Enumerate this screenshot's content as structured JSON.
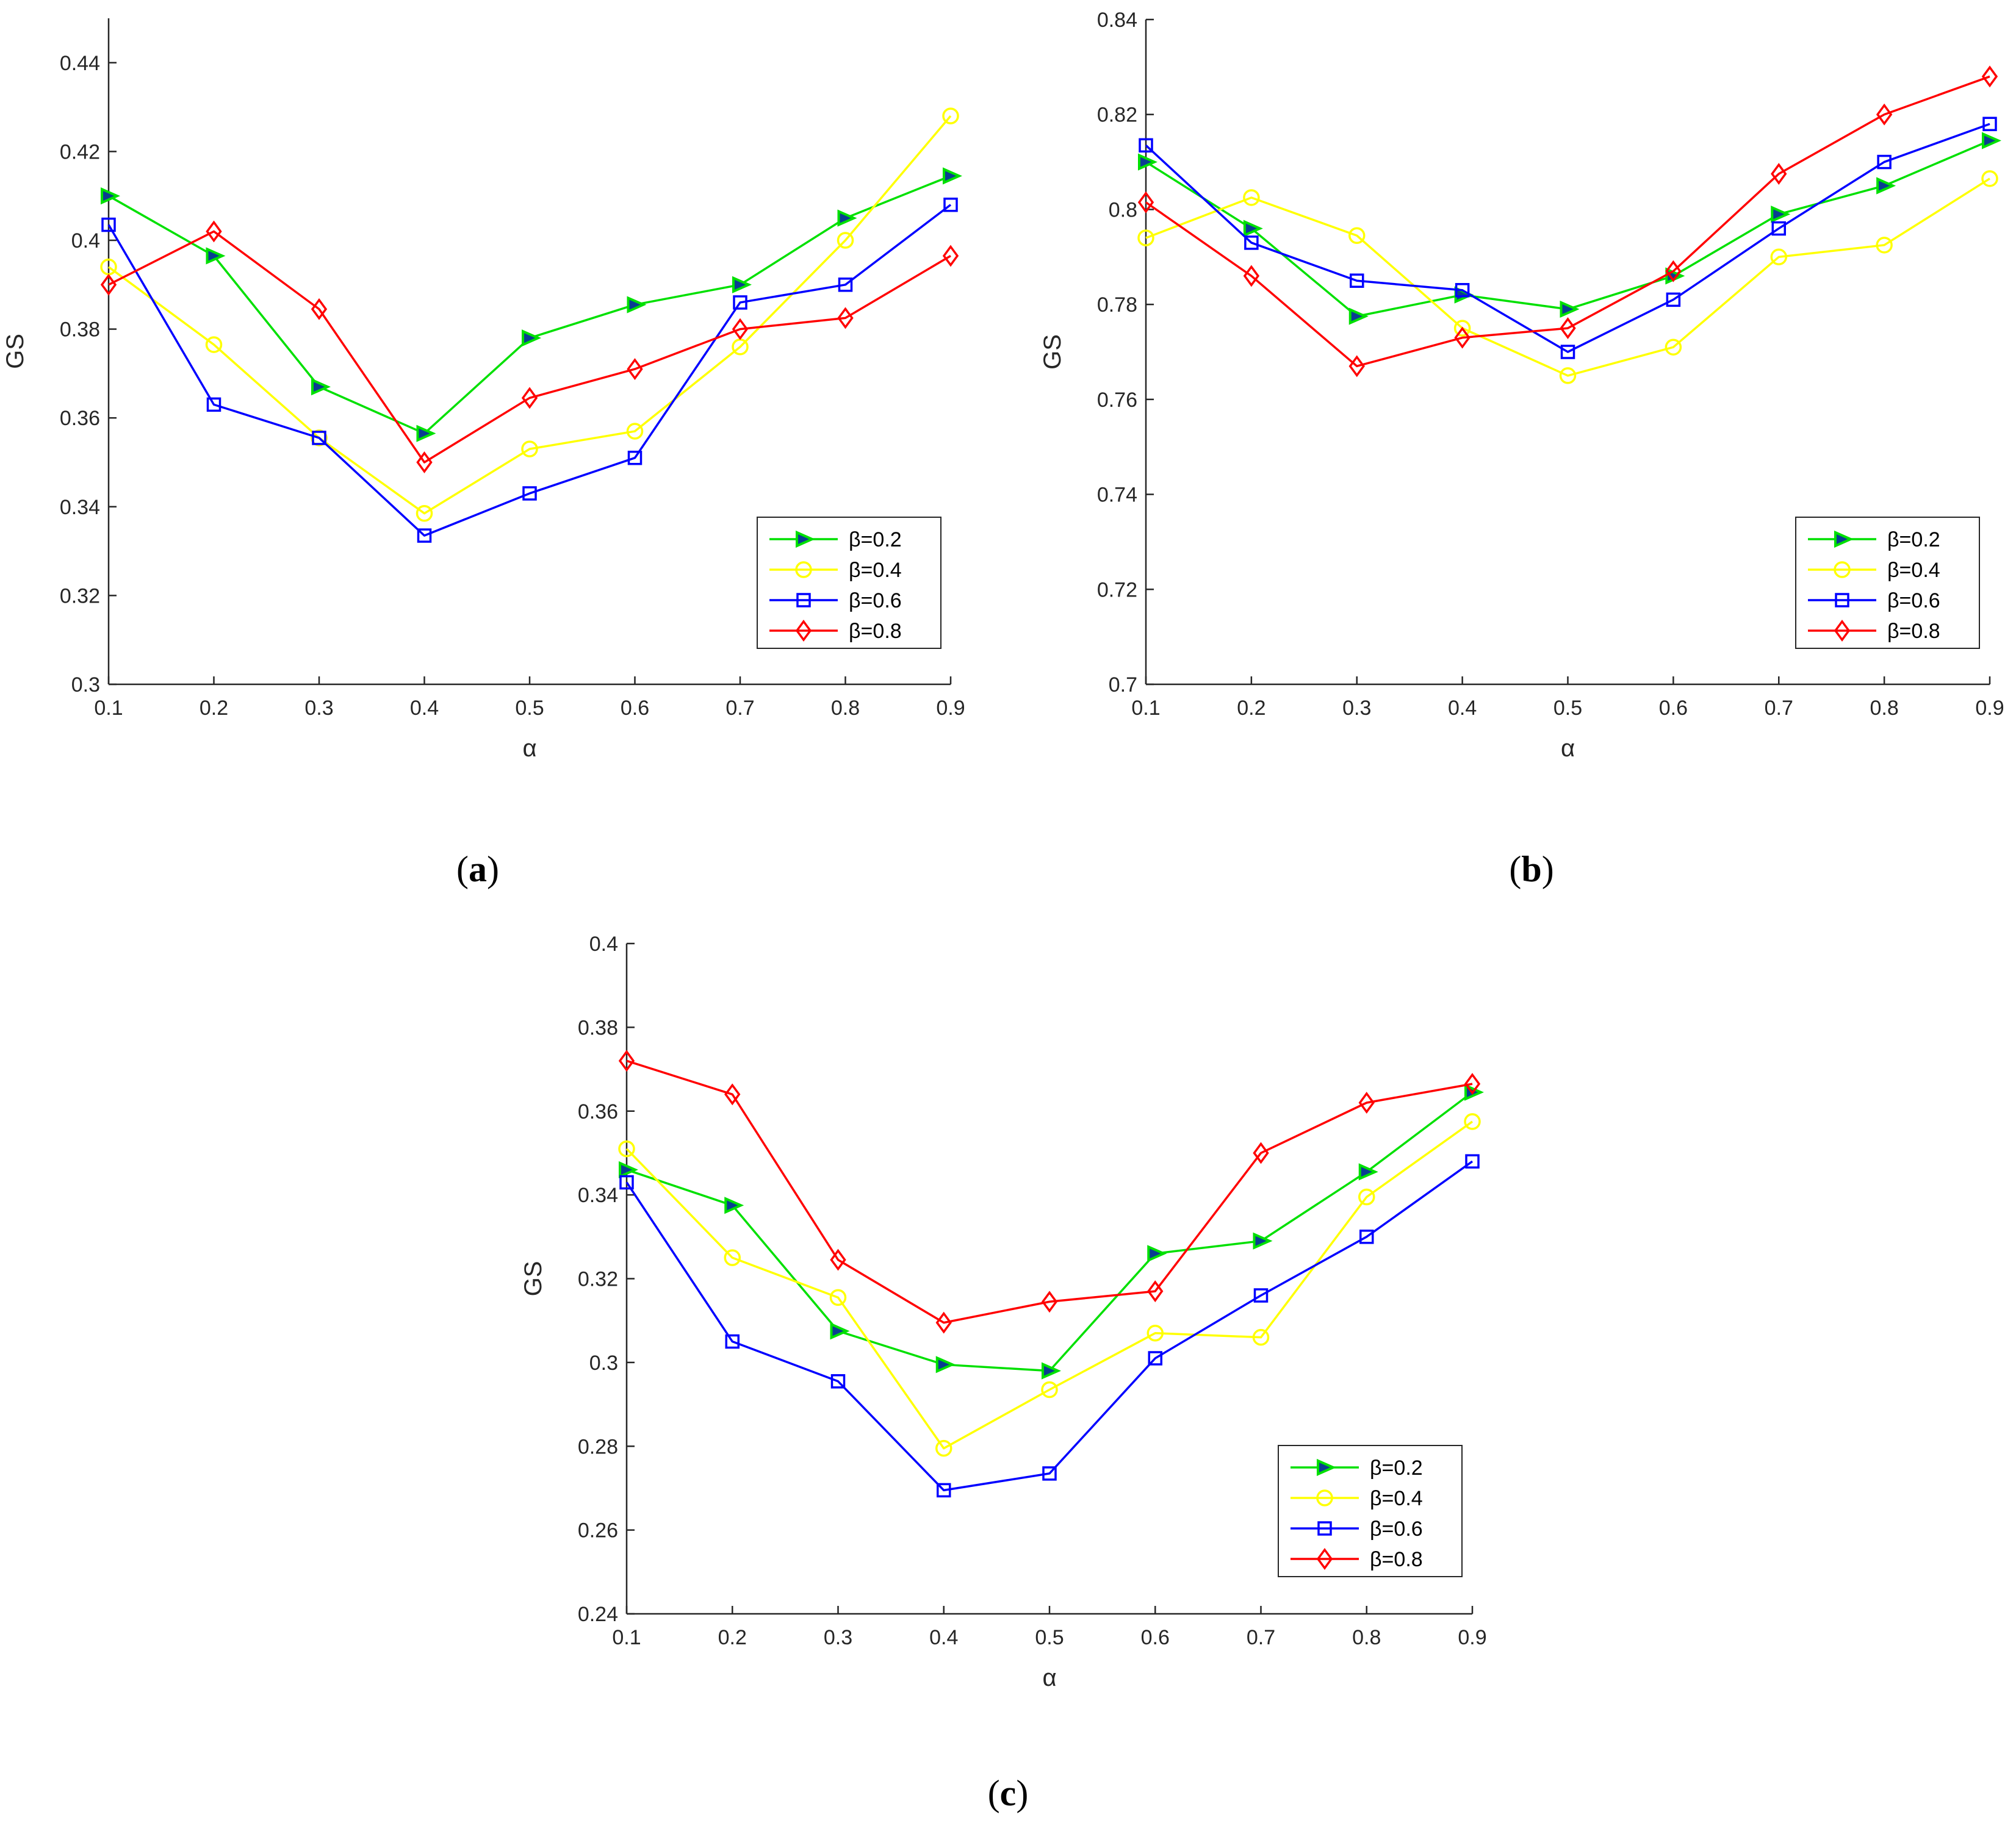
{
  "chart_data": [
    {
      "type": "line",
      "caption_letter": "a",
      "xlabel": "α",
      "ylabel": "GS",
      "x": [
        0.1,
        0.2,
        0.3,
        0.4,
        0.5,
        0.6,
        0.7,
        0.8,
        0.9
      ],
      "xtick_labels": [
        "0.1",
        "0.2",
        "0.3",
        "0.4",
        "0.5",
        "0.6",
        "0.7",
        "0.8",
        "0.9"
      ],
      "ylim": [
        0.3,
        0.45
      ],
      "yticks": [
        0.3,
        0.32,
        0.34,
        0.36,
        0.38,
        0.4,
        0.42,
        0.44
      ],
      "ytick_labels": [
        "0.3",
        "0.32",
        "0.34",
        "0.36",
        "0.38",
        "0.4",
        "0.42",
        "0.44"
      ],
      "legend_position": "bottom-right",
      "series": [
        {
          "name": "β=0.2",
          "color": "#00e000",
          "marker": "triangle-right",
          "values": [
            0.41,
            0.3965,
            0.367,
            0.3565,
            0.378,
            0.3855,
            0.39,
            0.405,
            0.4145
          ]
        },
        {
          "name": "β=0.4",
          "color": "#ffff00",
          "marker": "circle",
          "values": [
            0.394,
            0.3765,
            0.3555,
            0.3385,
            0.353,
            0.357,
            0.376,
            0.4,
            0.428
          ]
        },
        {
          "name": "β=0.6",
          "color": "#0000ff",
          "marker": "square",
          "values": [
            0.4035,
            0.363,
            0.3555,
            0.3335,
            0.343,
            0.351,
            0.386,
            0.39,
            0.408
          ]
        },
        {
          "name": "β=0.8",
          "color": "#ff0000",
          "marker": "diamond",
          "values": [
            0.39,
            0.402,
            0.3845,
            0.35,
            0.3645,
            0.371,
            0.38,
            0.3825,
            0.3965
          ]
        }
      ]
    },
    {
      "type": "line",
      "caption_letter": "b",
      "xlabel": "α",
      "ylabel": "GS",
      "x": [
        0.1,
        0.2,
        0.3,
        0.4,
        0.5,
        0.6,
        0.7,
        0.8,
        0.9
      ],
      "xtick_labels": [
        "0.1",
        "0.2",
        "0.3",
        "0.4",
        "0.5",
        "0.6",
        "0.7",
        "0.8",
        "0.9"
      ],
      "ylim": [
        0.7,
        0.84
      ],
      "yticks": [
        0.7,
        0.72,
        0.74,
        0.76,
        0.78,
        0.8,
        0.82,
        0.84
      ],
      "ytick_labels": [
        "0.7",
        "0.72",
        "0.74",
        "0.76",
        "0.78",
        "0.8",
        "0.82",
        "0.84"
      ],
      "legend_position": "bottom-right",
      "series": [
        {
          "name": "β=0.2",
          "color": "#00e000",
          "marker": "triangle-right",
          "values": [
            0.81,
            0.796,
            0.7775,
            0.782,
            0.779,
            0.786,
            0.799,
            0.805,
            0.8145
          ]
        },
        {
          "name": "β=0.4",
          "color": "#ffff00",
          "marker": "circle",
          "values": [
            0.794,
            0.8025,
            0.7945,
            0.775,
            0.765,
            0.771,
            0.79,
            0.7925,
            0.8065
          ]
        },
        {
          "name": "β=0.6",
          "color": "#0000ff",
          "marker": "square",
          "values": [
            0.8135,
            0.793,
            0.785,
            0.783,
            0.77,
            0.781,
            0.796,
            0.81,
            0.818
          ]
        },
        {
          "name": "β=0.8",
          "color": "#ff0000",
          "marker": "diamond",
          "values": [
            0.8015,
            0.786,
            0.767,
            0.773,
            0.775,
            0.787,
            0.8075,
            0.82,
            0.828
          ]
        }
      ]
    },
    {
      "type": "line",
      "caption_letter": "c",
      "xlabel": "α",
      "ylabel": "GS",
      "x": [
        0.1,
        0.2,
        0.3,
        0.4,
        0.5,
        0.6,
        0.7,
        0.8,
        0.9
      ],
      "xtick_labels": [
        "0.1",
        "0.2",
        "0.3",
        "0.4",
        "0.5",
        "0.6",
        "0.7",
        "0.8",
        "0.9"
      ],
      "ylim": [
        0.24,
        0.4
      ],
      "yticks": [
        0.24,
        0.26,
        0.28,
        0.3,
        0.32,
        0.34,
        0.36,
        0.38,
        0.4
      ],
      "ytick_labels": [
        "0.24",
        "0.26",
        "0.28",
        "0.3",
        "0.32",
        "0.34",
        "0.36",
        "0.38",
        "0.4"
      ],
      "legend_position": "bottom-right",
      "series": [
        {
          "name": "β=0.2",
          "color": "#00e000",
          "marker": "triangle-right",
          "values": [
            0.346,
            0.3375,
            0.3075,
            0.2995,
            0.298,
            0.326,
            0.329,
            0.3455,
            0.3645
          ]
        },
        {
          "name": "β=0.4",
          "color": "#ffff00",
          "marker": "circle",
          "values": [
            0.351,
            0.325,
            0.3155,
            0.2795,
            0.2935,
            0.307,
            0.306,
            0.3395,
            0.3575
          ]
        },
        {
          "name": "β=0.6",
          "color": "#0000ff",
          "marker": "square",
          "values": [
            0.343,
            0.305,
            0.2955,
            0.2695,
            0.2735,
            0.301,
            0.316,
            0.33,
            0.348
          ]
        },
        {
          "name": "β=0.8",
          "color": "#ff0000",
          "marker": "diamond",
          "values": [
            0.372,
            0.364,
            0.3245,
            0.3095,
            0.3145,
            0.317,
            0.35,
            0.362,
            0.3665
          ]
        }
      ]
    }
  ]
}
